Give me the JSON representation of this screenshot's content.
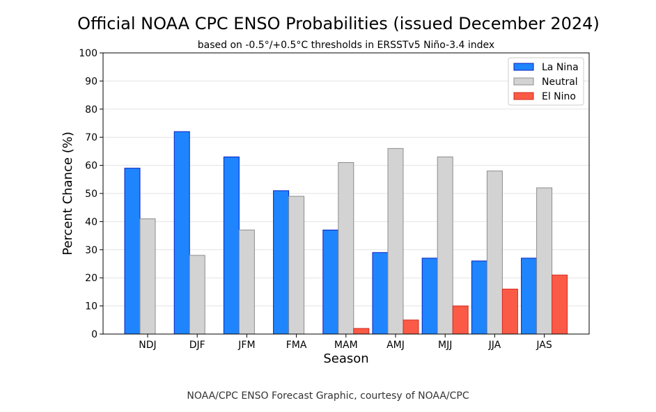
{
  "chart_data": {
    "type": "bar",
    "title": "Official NOAA CPC ENSO Probabilities (issued December 2024)",
    "subtitle": "based on -0.5°/+0.5°C thresholds in ERSSTv5 Niño-3.4 index",
    "xlabel": "Season",
    "ylabel": "Percent Chance (%)",
    "ylim": [
      0,
      100
    ],
    "yticks": [
      0,
      10,
      20,
      30,
      40,
      50,
      60,
      70,
      80,
      90,
      100
    ],
    "grid": true,
    "legend_position": "top-right",
    "categories": [
      "NDJ",
      "DJF",
      "JFM",
      "FMA",
      "MAM",
      "AMJ",
      "MJJ",
      "JJA",
      "JAS"
    ],
    "series": [
      {
        "name": "La Nina",
        "color": "#1f85ff",
        "edge": "#0b1fbf",
        "values": [
          59,
          72,
          63,
          51,
          37,
          29,
          27,
          26,
          27
        ]
      },
      {
        "name": "Neutral",
        "color": "#d3d3d3",
        "edge": "#8c8c8c",
        "values": [
          41,
          28,
          37,
          49,
          61,
          66,
          63,
          58,
          52
        ]
      },
      {
        "name": "El Nino",
        "color": "#fa5a46",
        "edge": "#d42b1e",
        "values": [
          0,
          0,
          0,
          0,
          2,
          5,
          10,
          16,
          21
        ]
      }
    ]
  },
  "caption": "NOAA/CPC ENSO Forecast Graphic, courtesy of NOAA/CPC"
}
